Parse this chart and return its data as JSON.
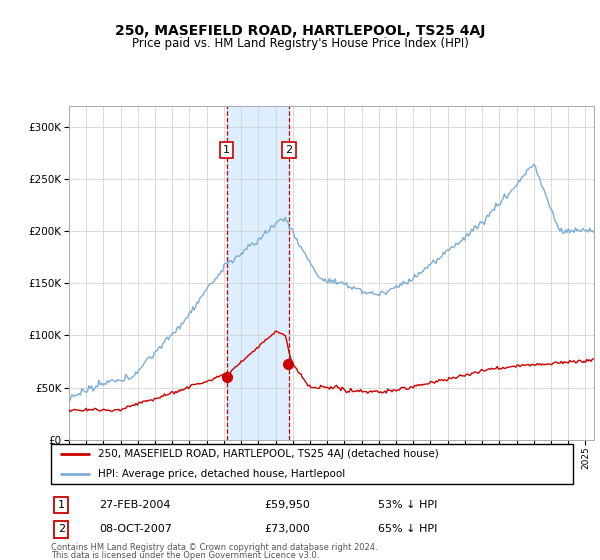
{
  "title": "250, MASEFIELD ROAD, HARTLEPOOL, TS25 4AJ",
  "subtitle": "Price paid vs. HM Land Registry's House Price Index (HPI)",
  "footer1": "Contains HM Land Registry data © Crown copyright and database right 2024.",
  "footer2": "This data is licensed under the Open Government Licence v3.0.",
  "legend_label_red": "250, MASEFIELD ROAD, HARTLEPOOL, TS25 4AJ (detached house)",
  "legend_label_blue": "HPI: Average price, detached house, Hartlepool",
  "point1_date": "27-FEB-2004",
  "point1_price": "£59,950",
  "point1_hpi": "53% ↓ HPI",
  "point1_year": 2004.15,
  "point1_value_red": 59950,
  "point2_date": "08-OCT-2007",
  "point2_price": "£73,000",
  "point2_hpi": "65% ↓ HPI",
  "point2_year": 2007.77,
  "point2_value_red": 73000,
  "background_color": "#ffffff",
  "plot_background": "#ffffff",
  "grid_color": "#cccccc",
  "red_color": "#cc0000",
  "blue_color": "#7dadd4",
  "shading_color": "#ddeeff",
  "ylim": [
    0,
    320000
  ],
  "yticks": [
    0,
    50000,
    100000,
    150000,
    200000,
    250000,
    300000
  ],
  "xlim_start": 1995,
  "xlim_end": 2025.5
}
